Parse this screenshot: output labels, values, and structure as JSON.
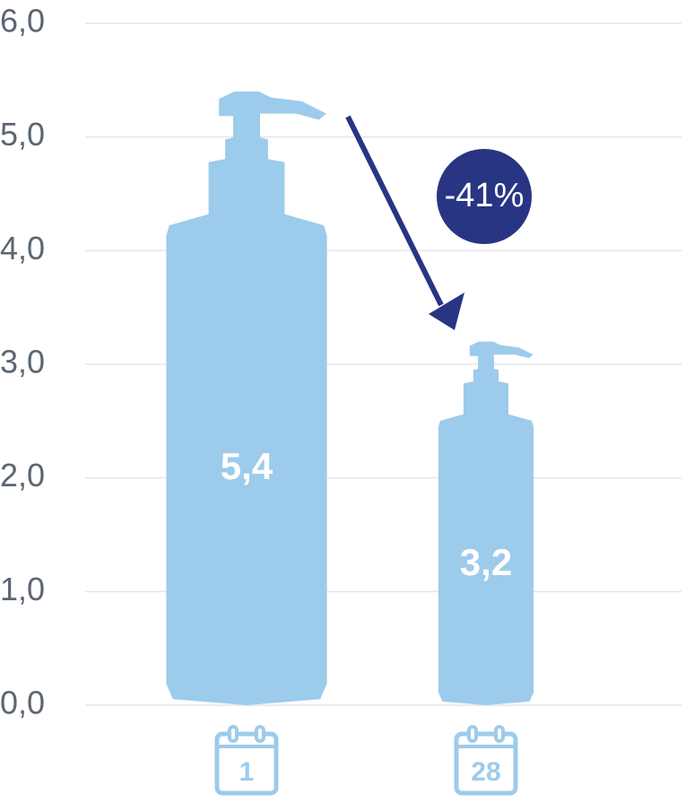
{
  "chart_data": {
    "type": "bar",
    "categories": [
      "1",
      "28"
    ],
    "values": [
      5.4,
      3.2
    ],
    "value_labels": [
      "5,4",
      "3,2"
    ],
    "color": "#9dcbeb",
    "ylim": [
      0,
      6
    ],
    "yticks": [
      {
        "value": 0,
        "label": "0,0"
      },
      {
        "value": 1,
        "label": "1,0"
      },
      {
        "value": 2,
        "label": "2,0"
      },
      {
        "value": 3,
        "label": "3,0"
      },
      {
        "value": 4,
        "label": "4,0"
      },
      {
        "value": 5,
        "label": "5,0"
      },
      {
        "value": 6,
        "label": "6,0"
      }
    ],
    "grid": true,
    "annotation": "-41%",
    "annotation_color": "#283583"
  }
}
